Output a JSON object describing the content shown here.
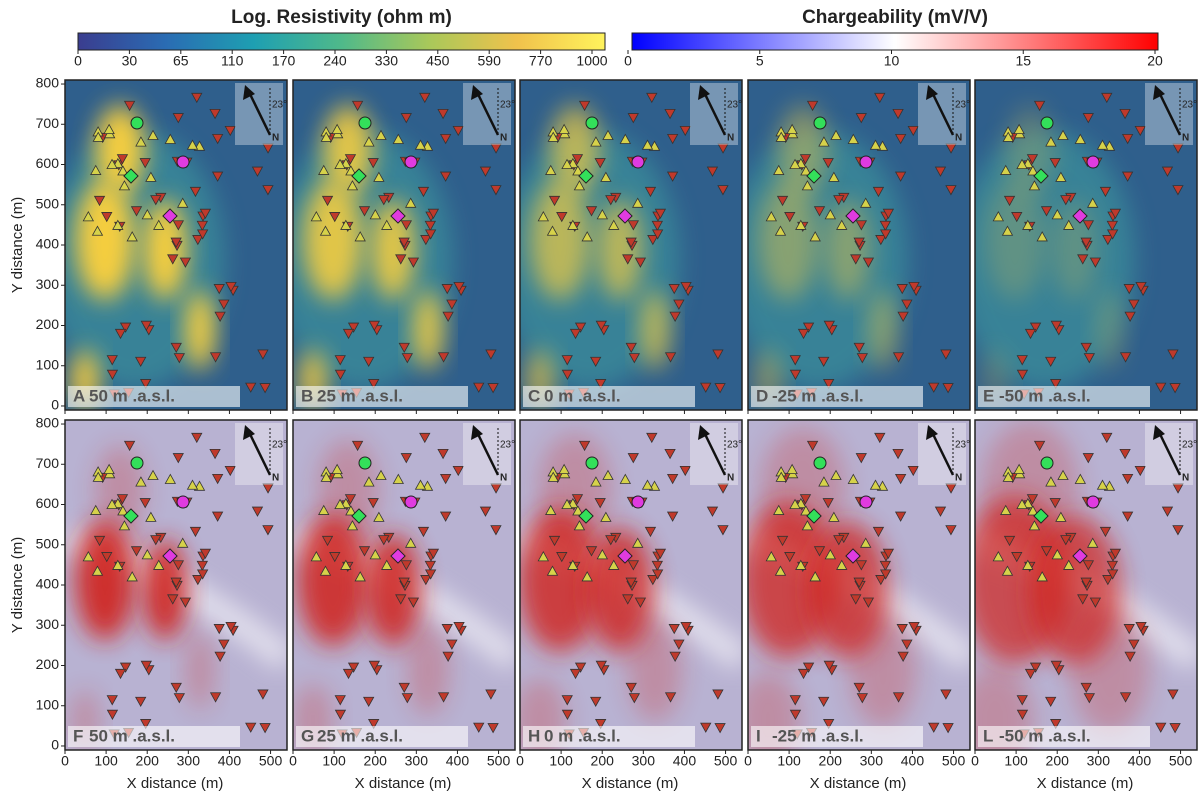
{
  "figure": {
    "colorbars": [
      {
        "title": "Log. Resistivity (ohm m)",
        "ticks": [
          0,
          30,
          65,
          110,
          170,
          240,
          330,
          450,
          590,
          770,
          1000
        ],
        "colors": [
          "#3a3d8f",
          "#2a6cb3",
          "#1e9fb2",
          "#4fb98a",
          "#a9c85a",
          "#f0c24c",
          "#fff35c"
        ]
      },
      {
        "title": "Chargeability (mV/V)",
        "lim": [
          0,
          20
        ],
        "ticks": [
          0,
          5,
          10,
          15,
          20
        ],
        "colors": [
          "#0000ff",
          "#ffffff",
          "#ff0000"
        ]
      }
    ],
    "rows": [
      {
        "colorbar": 0,
        "panels": [
          {
            "letter": "A",
            "label": "50 m .a.s.l."
          },
          {
            "letter": "B",
            "label": "25 m .a.s.l."
          },
          {
            "letter": "C",
            "label": "0 m .a.s.l."
          },
          {
            "letter": "D",
            "label": "-25 m .a.s.l."
          },
          {
            "letter": "E",
            "label": "-50 m .a.s.l."
          }
        ]
      },
      {
        "colorbar": 1,
        "panels": [
          {
            "letter": "F",
            "label": "50 m .a.s.l."
          },
          {
            "letter": "G",
            "label": "25 m .a.s.l."
          },
          {
            "letter": "H",
            "label": "0 m .a.s.l."
          },
          {
            "letter": "I",
            "label": "-25 m .a.s.l."
          },
          {
            "letter": "L",
            "label": "-50 m .a.s.l."
          }
        ]
      }
    ],
    "x_label": "X distance (m)",
    "y_label": "Y distance (m)",
    "xlim": [
      0,
      540
    ],
    "ylim": [
      -10,
      810
    ],
    "xticks": [
      0,
      100,
      200,
      300,
      400,
      500
    ],
    "yticks": [
      0,
      100,
      200,
      300,
      400,
      500,
      600,
      700,
      800
    ],
    "north": {
      "angle": "23°",
      "label": "N"
    }
  }
}
